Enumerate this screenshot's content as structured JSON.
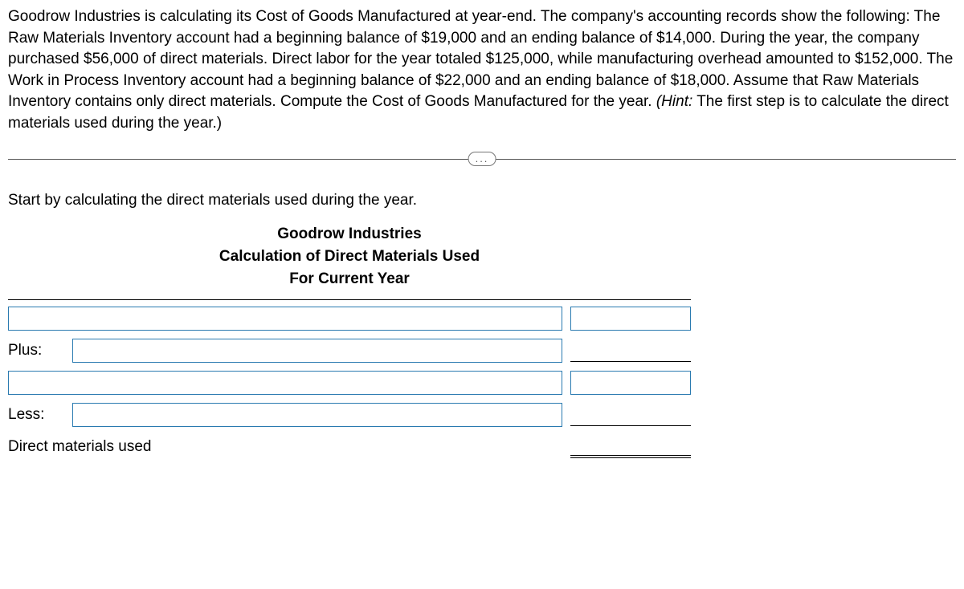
{
  "problem": {
    "text": "Goodrow Industries is calculating its Cost of Goods Manufactured at year-end. The company's accounting records show the following: The Raw Materials Inventory account had a beginning balance of $19,000 and an ending balance of $14,000. During the year, the  company purchased $56,000 of direct materials. Direct labor for the year totaled $125,000, while manufacturing overhead amounted to $152,000. The Work in Process Inventory account had a beginning balance of $22,000 and an ending balance of $18,000. Assume that Raw Materials Inventory contains only direct materials. Compute the Cost of Goods Manufactured for the year. ",
    "hint_label": "(Hint:",
    "hint_text": " The first step is to calculate the direct materials used during the year.)"
  },
  "divider": {
    "dots": "..."
  },
  "instruction": "Start by calculating the direct materials used during the year.",
  "schedule": {
    "header": {
      "company": "Goodrow Industries",
      "title": "Calculation of Direct Materials Used",
      "period": "For Current Year"
    },
    "rows": {
      "plus_label": "Plus:",
      "less_label": "Less:",
      "result_label": "Direct materials used"
    }
  },
  "colors": {
    "input_border": "#2a7ab0",
    "text": "#000000",
    "divider": "#555555"
  }
}
